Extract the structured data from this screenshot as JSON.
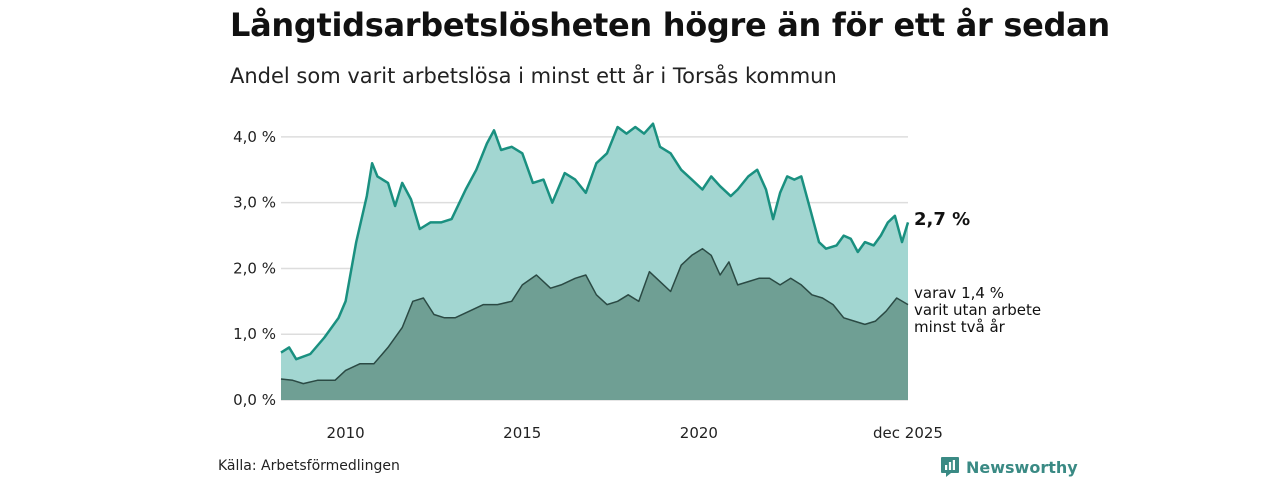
{
  "colors": {
    "total_line": "#1a9080",
    "total_fill": "#a2d6d1",
    "sub_line": "#2b4a44",
    "sub_fill": "#6f9f94",
    "grid": "#dddddd",
    "brand": "#3a8a84"
  },
  "chart_data": {
    "type": "area",
    "title": "Långtidsarbetslösheten högre än för ett år sedan",
    "subtitle": "Andel som varit arbetslösa i minst ett år i Torsås kommun",
    "xlabel": "",
    "ylabel": "",
    "x_range": [
      2008.17,
      2025.92
    ],
    "ylim": [
      0,
      4.5
    ],
    "y_ticks": [
      {
        "value": 0,
        "label": "0,0 %"
      },
      {
        "value": 1,
        "label": "1,0 %"
      },
      {
        "value": 2,
        "label": "2,0 %"
      },
      {
        "value": 3,
        "label": "3,0 %"
      },
      {
        "value": 4,
        "label": "4,0 %"
      }
    ],
    "x_ticks": [
      {
        "value": 2010,
        "label": "2010"
      },
      {
        "value": 2015,
        "label": "2015"
      },
      {
        "value": 2020,
        "label": "2020"
      },
      {
        "value": 2025.92,
        "label": "dec 2025"
      }
    ],
    "series": [
      {
        "name": "minst ett år",
        "end_label": "2,7 %",
        "points": [
          [
            2008.17,
            0.72
          ],
          [
            2008.4,
            0.8
          ],
          [
            2008.6,
            0.62
          ],
          [
            2009.0,
            0.7
          ],
          [
            2009.4,
            0.95
          ],
          [
            2009.8,
            1.25
          ],
          [
            2010.0,
            1.5
          ],
          [
            2010.3,
            2.4
          ],
          [
            2010.6,
            3.1
          ],
          [
            2010.75,
            3.6
          ],
          [
            2010.9,
            3.4
          ],
          [
            2011.2,
            3.3
          ],
          [
            2011.4,
            2.95
          ],
          [
            2011.6,
            3.3
          ],
          [
            2011.85,
            3.05
          ],
          [
            2012.1,
            2.6
          ],
          [
            2012.4,
            2.7
          ],
          [
            2012.7,
            2.7
          ],
          [
            2013.0,
            2.75
          ],
          [
            2013.4,
            3.2
          ],
          [
            2013.7,
            3.5
          ],
          [
            2014.0,
            3.9
          ],
          [
            2014.2,
            4.1
          ],
          [
            2014.4,
            3.8
          ],
          [
            2014.7,
            3.85
          ],
          [
            2015.0,
            3.75
          ],
          [
            2015.3,
            3.3
          ],
          [
            2015.6,
            3.35
          ],
          [
            2015.85,
            3.0
          ],
          [
            2016.2,
            3.45
          ],
          [
            2016.5,
            3.35
          ],
          [
            2016.8,
            3.15
          ],
          [
            2017.1,
            3.6
          ],
          [
            2017.4,
            3.75
          ],
          [
            2017.7,
            4.15
          ],
          [
            2017.95,
            4.05
          ],
          [
            2018.2,
            4.15
          ],
          [
            2018.45,
            4.05
          ],
          [
            2018.7,
            4.2
          ],
          [
            2018.9,
            3.85
          ],
          [
            2019.2,
            3.75
          ],
          [
            2019.5,
            3.5
          ],
          [
            2019.8,
            3.35
          ],
          [
            2020.1,
            3.2
          ],
          [
            2020.35,
            3.4
          ],
          [
            2020.6,
            3.25
          ],
          [
            2020.9,
            3.1
          ],
          [
            2021.1,
            3.2
          ],
          [
            2021.4,
            3.4
          ],
          [
            2021.65,
            3.5
          ],
          [
            2021.9,
            3.2
          ],
          [
            2022.1,
            2.75
          ],
          [
            2022.3,
            3.15
          ],
          [
            2022.5,
            3.4
          ],
          [
            2022.7,
            3.35
          ],
          [
            2022.9,
            3.4
          ],
          [
            2023.15,
            2.9
          ],
          [
            2023.4,
            2.4
          ],
          [
            2023.6,
            2.3
          ],
          [
            2023.9,
            2.35
          ],
          [
            2024.1,
            2.5
          ],
          [
            2024.3,
            2.45
          ],
          [
            2024.5,
            2.25
          ],
          [
            2024.7,
            2.4
          ],
          [
            2024.95,
            2.35
          ],
          [
            2025.15,
            2.5
          ],
          [
            2025.35,
            2.7
          ],
          [
            2025.55,
            2.8
          ],
          [
            2025.75,
            2.4
          ],
          [
            2025.92,
            2.7
          ]
        ]
      },
      {
        "name": "varav minst två år",
        "end_label_lines": [
          "varav 1,4 %",
          "varit utan arbete",
          "minst två år"
        ],
        "points": [
          [
            2008.17,
            0.32
          ],
          [
            2008.5,
            0.3
          ],
          [
            2008.8,
            0.25
          ],
          [
            2009.2,
            0.3
          ],
          [
            2009.7,
            0.3
          ],
          [
            2010.0,
            0.45
          ],
          [
            2010.4,
            0.55
          ],
          [
            2010.8,
            0.55
          ],
          [
            2011.2,
            0.8
          ],
          [
            2011.6,
            1.1
          ],
          [
            2011.9,
            1.5
          ],
          [
            2012.2,
            1.55
          ],
          [
            2012.5,
            1.3
          ],
          [
            2012.8,
            1.25
          ],
          [
            2013.1,
            1.25
          ],
          [
            2013.5,
            1.35
          ],
          [
            2013.9,
            1.45
          ],
          [
            2014.3,
            1.45
          ],
          [
            2014.7,
            1.5
          ],
          [
            2015.0,
            1.75
          ],
          [
            2015.4,
            1.9
          ],
          [
            2015.8,
            1.7
          ],
          [
            2016.1,
            1.75
          ],
          [
            2016.5,
            1.85
          ],
          [
            2016.8,
            1.9
          ],
          [
            2017.1,
            1.6
          ],
          [
            2017.4,
            1.45
          ],
          [
            2017.7,
            1.5
          ],
          [
            2018.0,
            1.6
          ],
          [
            2018.3,
            1.5
          ],
          [
            2018.6,
            1.95
          ],
          [
            2018.9,
            1.8
          ],
          [
            2019.2,
            1.65
          ],
          [
            2019.5,
            2.05
          ],
          [
            2019.8,
            2.2
          ],
          [
            2020.1,
            2.3
          ],
          [
            2020.35,
            2.2
          ],
          [
            2020.6,
            1.9
          ],
          [
            2020.85,
            2.1
          ],
          [
            2021.1,
            1.75
          ],
          [
            2021.4,
            1.8
          ],
          [
            2021.7,
            1.85
          ],
          [
            2022.0,
            1.85
          ],
          [
            2022.3,
            1.75
          ],
          [
            2022.6,
            1.85
          ],
          [
            2022.9,
            1.75
          ],
          [
            2023.2,
            1.6
          ],
          [
            2023.5,
            1.55
          ],
          [
            2023.8,
            1.45
          ],
          [
            2024.1,
            1.25
          ],
          [
            2024.4,
            1.2
          ],
          [
            2024.7,
            1.15
          ],
          [
            2025.0,
            1.2
          ],
          [
            2025.3,
            1.35
          ],
          [
            2025.6,
            1.55
          ],
          [
            2025.92,
            1.45
          ]
        ]
      }
    ]
  },
  "footer": {
    "source": "Källa: Arbetsförmedlingen",
    "brand": "Newsworthy",
    "brand_icon": "bar-chart-icon"
  }
}
